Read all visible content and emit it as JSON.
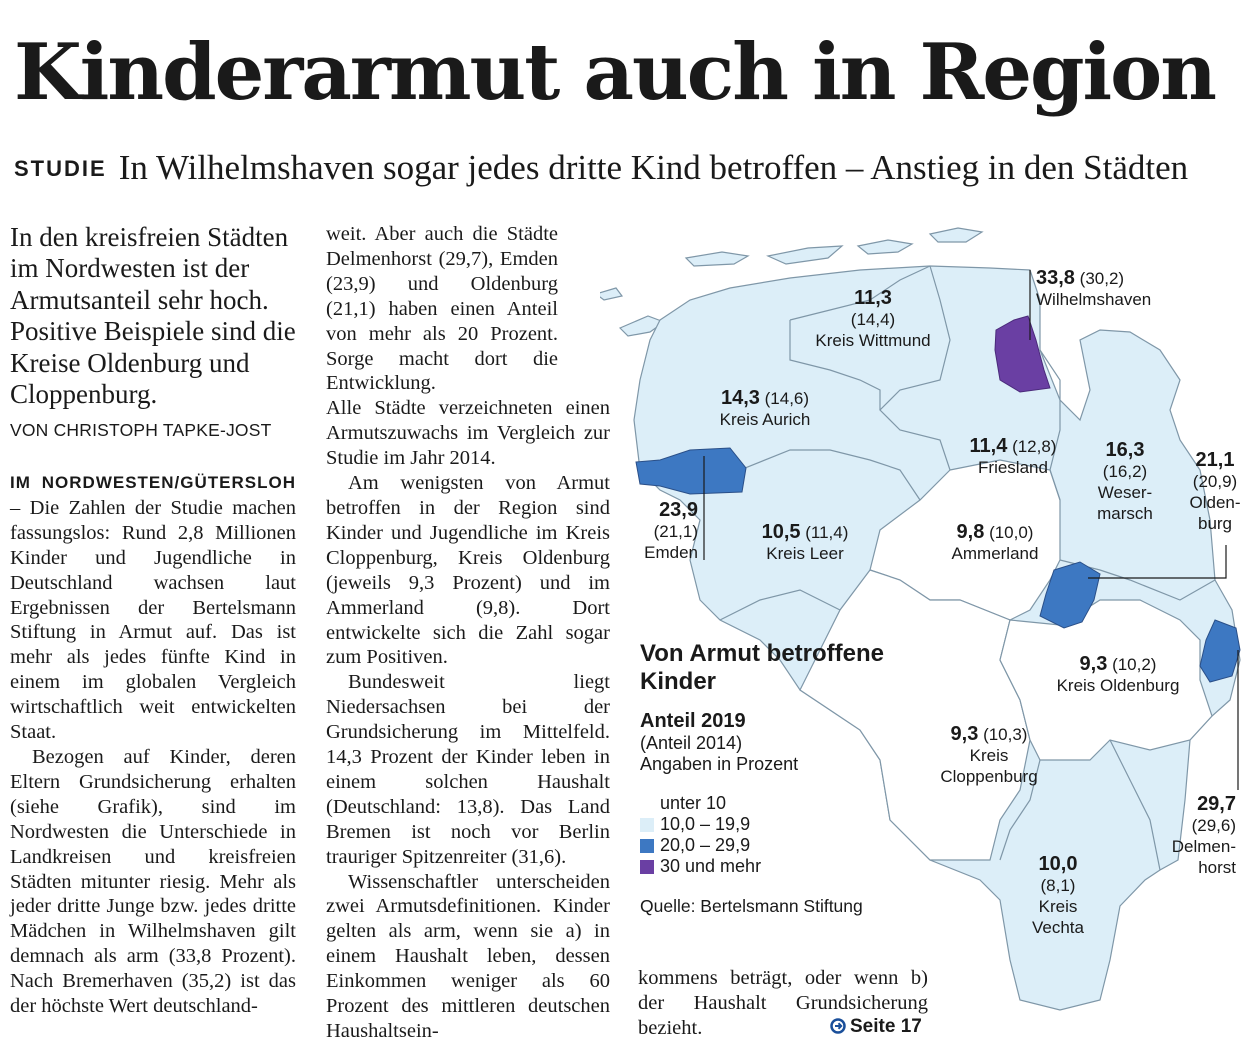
{
  "headline": "Kinderarmut auch in Region",
  "subhead": {
    "kicker": "STUDIE",
    "text": "In Wilhelmshaven sogar jedes dritte Kind betroffen – Anstieg in den Städten"
  },
  "teaser": "In den kreisfreien Städten im Nordwesten ist der Armutsanteil sehr hoch. Positive Beispiele sind die Kreise Oldenburg und Cloppenburg.",
  "byline": "VON CHRISTOPH TAPKE-JOST",
  "article": {
    "dateline": "IM NORDWESTEN/GÜTERSLOH",
    "p1": "Die Zahlen der Studie machen fassungslos: Rund 2,8 Millionen Kinder und Jugendliche in Deutschland wachsen laut Ergebnissen der Bertelsmann Stiftung in Armut auf. Das ist mehr als jedes fünfte Kind in einem im globalen Vergleich wirtschaftlich weit entwickelten Staat.",
    "p2": "Bezogen auf Kinder, deren Eltern Grundsicherung erhalten (siehe Grafik), sind im Nordwesten die Unterschiede in Landkreisen und kreisfreien Städten mitunter riesig. Mehr als jeder dritte Junge bzw. jedes dritte Mädchen in Wilhelmshaven gilt demnach als arm (33,8 Prozent). Nach Bremerhaven (35,2) ist das der höchste Wert deutschland-",
    "p3": "weit. Aber auch die Städte Delmenhorst (29,7), Emden (23,9) und Oldenburg (21,1) haben einen Anteil von mehr als 20 Prozent. Sorge macht dort die Entwicklung.",
    "p4": "Alle Städte verzeichneten einen Armutszuwachs im Vergleich zur Studie im Jahr 2014.",
    "p5": "Am wenigsten von Armut betroffen in der Region sind Kinder und Jugendliche im Kreis Cloppenburg, Kreis Oldenburg (jeweils 9,3 Prozent) und im Ammerland (9,8). Dort entwickelte sich die Zahl sogar zum Positiven.",
    "p6": "Bundesweit liegt Niedersachsen bei der Grundsicherung im Mittelfeld. 14,3 Prozent der Kinder leben in einem solchen Haushalt (Deutschland: 13,8). Das Land Bremen ist noch vor Berlin trauriger Spitzenreiter (31,6).",
    "p7": "Wissenschaftler unterscheiden zwei Armutsdefinitionen. Kinder gelten als arm, wenn sie a) in einem Haushalt leben, dessen Einkommen weniger als 60 Prozent des mittleren deutschen Haushaltsein-",
    "p8": "kommens beträgt, oder wenn b) der Haushalt Grundsicherung bezieht.",
    "more_link": "Seite 17",
    "more_icon": "arrow-right-circle-icon"
  },
  "graphic": {
    "title": "Von Armut betroffene Kinder",
    "sub1": "Anteil 2019",
    "sub2": "(Anteil 2014)",
    "sub3": "Angaben in Prozent",
    "source": "Quelle: Bertelsmann Stiftung",
    "legend": [
      {
        "label": "unter 10",
        "color": "#ffffff"
      },
      {
        "label": "10,0 – 19,9",
        "color": "#dceef8"
      },
      {
        "label": "20,0 – 29,9",
        "color": "#3d78c2"
      },
      {
        "label": "30 und mehr",
        "color": "#6a3fa3"
      }
    ],
    "regions": [
      {
        "name": "Wilhelmshaven",
        "v2019": "33,8",
        "v2014": "(30,2)"
      },
      {
        "name": "Kreis Wittmund",
        "v2019": "11,3",
        "v2014": "(14,4)"
      },
      {
        "name": "Kreis Aurich",
        "v2019": "14,3",
        "v2014": "(14,6)"
      },
      {
        "name": "Friesland",
        "v2019": "11,4",
        "v2014": "(12,8)"
      },
      {
        "name1": "Weser-",
        "name2": "marsch",
        "v2019": "16,3",
        "v2014": "(16,2)"
      },
      {
        "name1": "Olden-",
        "name2": "burg",
        "v2019": "21,1",
        "v2014": "(20,9)"
      },
      {
        "name": "Emden",
        "v2019": "23,9",
        "v2014": "(21,1)"
      },
      {
        "name": "Kreis Leer",
        "v2019": "10,5",
        "v2014": "(11,4)"
      },
      {
        "name": "Ammerland",
        "v2019": "9,8",
        "v2014": "(10,0)"
      },
      {
        "name": "Kreis Oldenburg",
        "v2019": "9,3",
        "v2014": "(10,2)"
      },
      {
        "name1": "Kreis",
        "name2": "Cloppenburg",
        "v2019": "9,3",
        "v2014": "(10,3)"
      },
      {
        "name1": "Delmen-",
        "name2": "horst",
        "v2019": "29,7",
        "v2014": "(29,6)"
      },
      {
        "name1": "Kreis",
        "name2": "Vechta",
        "v2019": "10,0",
        "v2014": "(8,1)"
      }
    ]
  }
}
